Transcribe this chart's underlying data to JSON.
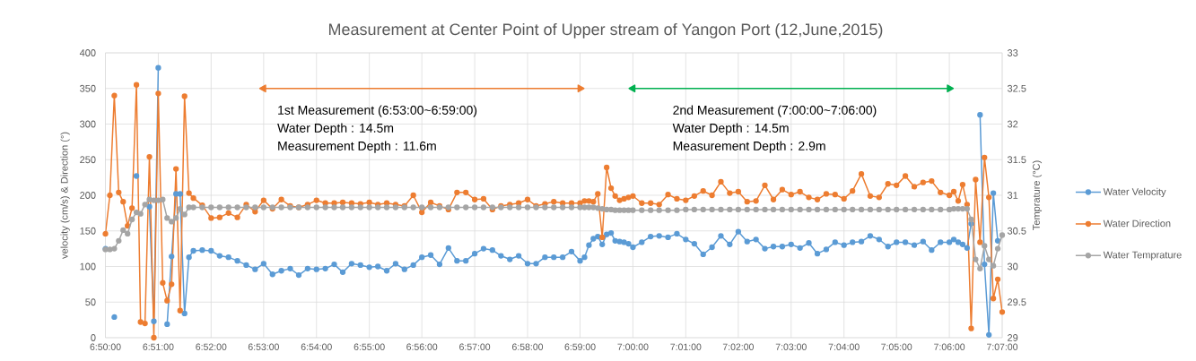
{
  "chart_data": {
    "type": "line",
    "title": "Measurement at Center Point of Upper stream of Yangon Port (12,June,2015)",
    "ylabel": "velocity (cm/s) & Direction (°)",
    "y2label": "Temprature (°C)",
    "x": [
      6.8333,
      6.8347,
      6.8361,
      6.8375,
      6.8389,
      6.8403,
      6.8417,
      6.8431,
      6.8444,
      6.8458,
      6.8472,
      6.8486,
      6.85,
      6.8514,
      6.8528,
      6.8542,
      6.8556,
      6.8569,
      6.8583,
      6.8597,
      6.8611,
      6.8639,
      6.8667,
      6.8694,
      6.8722,
      6.875,
      6.8778,
      6.8806,
      6.8833,
      6.8861,
      6.8889,
      6.8917,
      6.8944,
      6.8972,
      6.9,
      6.9028,
      6.9056,
      6.9083,
      6.9111,
      6.9139,
      6.9167,
      6.9194,
      6.9222,
      6.925,
      6.9278,
      6.9306,
      6.9333,
      6.9361,
      6.9389,
      6.9417,
      6.9444,
      6.9472,
      6.95,
      6.9528,
      6.9556,
      6.9583,
      6.9611,
      6.9639,
      6.9667,
      6.9694,
      6.9722,
      6.975,
      6.9778,
      6.9806,
      6.9833,
      6.9847,
      6.9861,
      6.9875,
      6.9889,
      6.9903,
      6.9917,
      6.9931,
      6.9944,
      6.9958,
      6.9972,
      6.9986,
      7.0,
      7.0028,
      7.0056,
      7.0083,
      7.0111,
      7.0139,
      7.0167,
      7.0194,
      7.0222,
      7.025,
      7.0278,
      7.0306,
      7.0333,
      7.0361,
      7.0389,
      7.0417,
      7.0444,
      7.0472,
      7.05,
      7.0528,
      7.0556,
      7.0583,
      7.0611,
      7.0639,
      7.0667,
      7.0694,
      7.0722,
      7.075,
      7.0778,
      7.0806,
      7.0833,
      7.0861,
      7.0889,
      7.0917,
      7.0944,
      7.0972,
      7.1,
      7.1014,
      7.1028,
      7.1042,
      7.1056,
      7.1069,
      7.1083,
      7.1097,
      7.1111,
      7.1125,
      7.1139,
      7.1153,
      7.1167
    ],
    "series": [
      {
        "name": "Water Velocity",
        "color": "#5b9bd5",
        "values": [
          125,
          null,
          29,
          null,
          null,
          null,
          null,
          227,
          null,
          null,
          184,
          23,
          379,
          null,
          19,
          114,
          202,
          202,
          34,
          113,
          122,
          123,
          122,
          115,
          113,
          108,
          102,
          96,
          104,
          89,
          94,
          97,
          88,
          97,
          96,
          97,
          103,
          92,
          104,
          102,
          99,
          100,
          94,
          104,
          96,
          102,
          113,
          116,
          103,
          126,
          108,
          108,
          118,
          125,
          123,
          115,
          110,
          115,
          104,
          104,
          113,
          113,
          113,
          121,
          108,
          113,
          130,
          139,
          142,
          131,
          145,
          147,
          136,
          135,
          134,
          132,
          127,
          134,
          142,
          143,
          141,
          146,
          138,
          132,
          117,
          127,
          143,
          131,
          149,
          135,
          138,
          125,
          128,
          128,
          131,
          126,
          133,
          118,
          124,
          134,
          130,
          134,
          135,
          143,
          138,
          128,
          134,
          134,
          130,
          135,
          123,
          134,
          134,
          138,
          134,
          131,
          126,
          160,
          null,
          313,
          103,
          4,
          203,
          136,
          null
        ]
      },
      {
        "name": "Water Direction",
        "color": "#ed7d31",
        "values": [
          146,
          200,
          340,
          204,
          191,
          157,
          182,
          355,
          22,
          20,
          254,
          0,
          343,
          77,
          52,
          75,
          237,
          38,
          339,
          203,
          196,
          186,
          168,
          169,
          175,
          169,
          187,
          177,
          193,
          181,
          194,
          185,
          183,
          187,
          193,
          189,
          189,
          190,
          189,
          188,
          190,
          187,
          189,
          187,
          185,
          200,
          176,
          190,
          185,
          180,
          204,
          204,
          194,
          195,
          180,
          185,
          187,
          189,
          194,
          185,
          188,
          191,
          189,
          189,
          189,
          192,
          192,
          191,
          202,
          141,
          239,
          210,
          199,
          193,
          195,
          197,
          199,
          189,
          189,
          187,
          201,
          195,
          193,
          199,
          206,
          200,
          219,
          203,
          205,
          191,
          192,
          214,
          194,
          208,
          201,
          205,
          197,
          194,
          202,
          201,
          195,
          206,
          230,
          199,
          197,
          216,
          214,
          227,
          212,
          218,
          220,
          204,
          200,
          205,
          192,
          215,
          187,
          13,
          222,
          134,
          253,
          197,
          55,
          82,
          36
        ]
      },
      {
        "name": "Water Temprature",
        "color": "#a5a5a5",
        "axis": "y2",
        "values": [
          30.24,
          30.24,
          30.25,
          30.36,
          30.51,
          30.46,
          30.66,
          30.76,
          30.74,
          30.87,
          30.94,
          30.93,
          30.93,
          30.94,
          30.68,
          30.63,
          30.68,
          30.81,
          30.73,
          30.83,
          30.83,
          30.83,
          30.83,
          30.83,
          30.83,
          30.83,
          30.83,
          30.83,
          30.83,
          30.83,
          30.83,
          30.83,
          30.83,
          30.83,
          30.83,
          30.83,
          30.83,
          30.83,
          30.83,
          30.83,
          30.83,
          30.83,
          30.83,
          30.83,
          30.83,
          30.83,
          30.83,
          30.83,
          30.83,
          30.83,
          30.83,
          30.83,
          30.83,
          30.83,
          30.83,
          30.83,
          30.83,
          30.83,
          30.83,
          30.83,
          30.83,
          30.83,
          30.83,
          30.83,
          30.83,
          30.83,
          30.83,
          30.83,
          30.82,
          30.81,
          30.8,
          30.8,
          30.79,
          30.79,
          30.79,
          30.79,
          30.79,
          30.79,
          30.79,
          30.79,
          30.79,
          30.79,
          30.8,
          30.8,
          30.8,
          30.8,
          30.8,
          30.8,
          30.8,
          30.8,
          30.8,
          30.8,
          30.8,
          30.8,
          30.8,
          30.8,
          30.8,
          30.8,
          30.8,
          30.8,
          30.8,
          30.8,
          30.8,
          30.8,
          30.8,
          30.8,
          30.8,
          30.8,
          30.8,
          30.8,
          30.8,
          30.8,
          30.8,
          30.81,
          30.81,
          30.81,
          30.81,
          30.66,
          30.1,
          29.97,
          30.29,
          30.1,
          30.01,
          30.25,
          30.44
        ]
      },
      {
        "type": "line",
        "color": "#ed7d31",
        "marker": "triangle",
        "x": [
          6.8833,
          6.9833
        ],
        "values": [
          350,
          350
        ]
      },
      {
        "type": "line",
        "color": "#00b050",
        "marker": "triangle",
        "x": [
          7.0,
          7.1
        ],
        "values": [
          350,
          350
        ]
      }
    ],
    "xlim": [
      6.8333,
      7.1167
    ],
    "xticks": [
      {
        "value": 6.8333,
        "label": "6:50:00"
      },
      {
        "value": 6.85,
        "label": "6:51:00"
      },
      {
        "value": 6.8667,
        "label": "6:52:00"
      },
      {
        "value": 6.8833,
        "label": "6:53:00"
      },
      {
        "value": 6.9,
        "label": "6:54:00"
      },
      {
        "value": 6.9167,
        "label": "6:55:00"
      },
      {
        "value": 6.9333,
        "label": "6:56:00"
      },
      {
        "value": 6.95,
        "label": "6:57:00"
      },
      {
        "value": 6.9667,
        "label": "6:58:00"
      },
      {
        "value": 6.9833,
        "label": "6:59:00"
      },
      {
        "value": 7.0,
        "label": "7:00:00"
      },
      {
        "value": 7.0167,
        "label": "7:01:00"
      },
      {
        "value": 7.0333,
        "label": "7:02:00"
      },
      {
        "value": 7.05,
        "label": "7:03:00"
      },
      {
        "value": 7.0667,
        "label": "7:04:00"
      },
      {
        "value": 7.0833,
        "label": "7:05:00"
      },
      {
        "value": 7.1,
        "label": "7:06:00"
      },
      {
        "value": 7.1167,
        "label": "7:07:00"
      }
    ],
    "ylim": [
      0,
      400
    ],
    "yticks": [
      0,
      50,
      100,
      150,
      200,
      250,
      300,
      350,
      400
    ],
    "y2lim": [
      29,
      33
    ],
    "y2ticks": [
      29,
      29.5,
      30,
      30.5,
      31,
      31.5,
      32,
      32.5,
      33
    ],
    "grid": true,
    "legend": "right",
    "marker": "circle",
    "annotations": [
      "1st Measurement (6:53:00~6:59:00)",
      "Water Depth : 14.5m",
      "Measurement Depth : 11.6m",
      "2nd Measurement (7:00:00~7:06:00)",
      "Water Depth : 14.5m",
      "Measurement Depth : 2.9m"
    ]
  }
}
